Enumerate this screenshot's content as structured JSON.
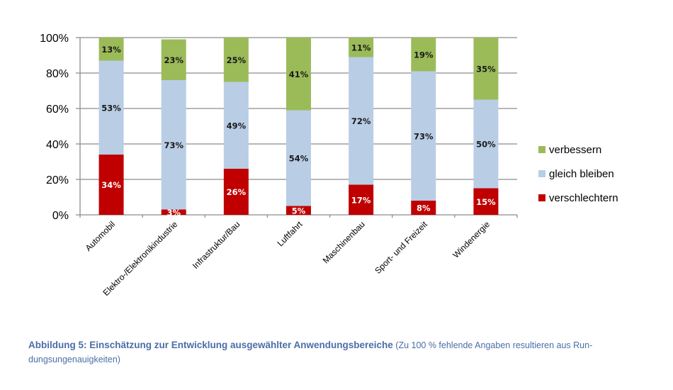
{
  "chart_data": {
    "type": "bar",
    "stacked": true,
    "title": "",
    "xlabel": "",
    "ylabel": "",
    "ylim": [
      0,
      100
    ],
    "y_unit": "%",
    "y_ticks": [
      "0%",
      "20%",
      "40%",
      "60%",
      "80%",
      "100%"
    ],
    "y_tick_values": [
      0,
      20,
      40,
      60,
      80,
      100
    ],
    "grid": true,
    "legend_position": "right",
    "categories": [
      "Automobil",
      "Elektro-/Elektronikindustrie",
      "Infrastruktur/Bau",
      "Luftfahrt",
      "Maschinenbau",
      "Sport- und Freizeit",
      "Windenergie"
    ],
    "series": [
      {
        "name": "verschlechtern",
        "color": "#c00000",
        "label_color": "#ffffff",
        "values": [
          34,
          3,
          26,
          5,
          17,
          8,
          15
        ]
      },
      {
        "name": "gleich bleiben",
        "color": "#b9cde5",
        "label_color": "#1a1a1a",
        "values": [
          53,
          73,
          49,
          54,
          72,
          73,
          50
        ]
      },
      {
        "name": "verbessern",
        "color": "#9bbb59",
        "label_color": "#1a1a1a",
        "values": [
          13,
          23,
          25,
          41,
          11,
          19,
          35
        ]
      }
    ],
    "legend_order": [
      "verbessern",
      "gleich bleiben",
      "verschlechtern"
    ]
  },
  "caption": {
    "bold": "Abbildung 5: Einschätzung zur Entwicklung ausgewählter Anwendungsbereiche",
    "normal": " (Zu 100 % fehlende Angaben resultieren aus Run-dungsungenauigkeiten)"
  }
}
